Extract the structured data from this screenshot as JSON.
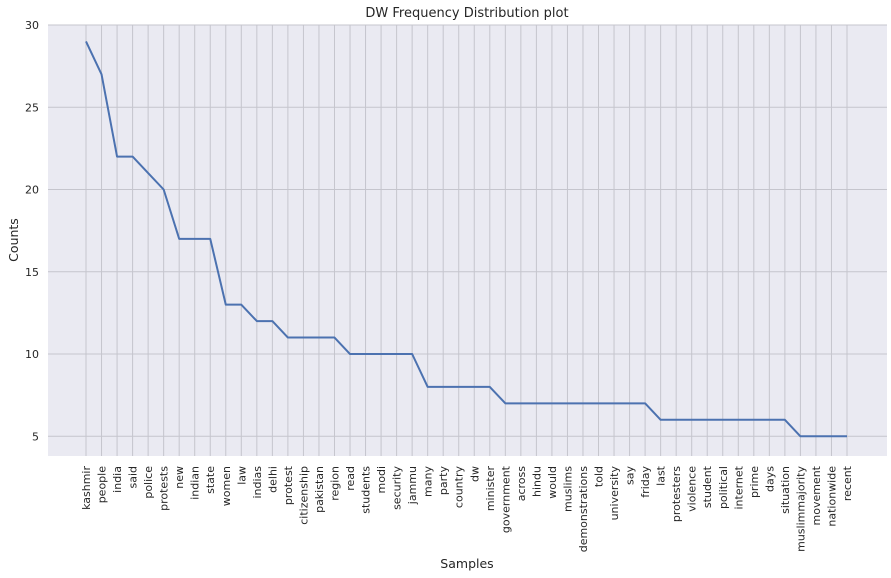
{
  "chart_data": {
    "type": "line",
    "title": "DW Frequency Distribution plot",
    "xlabel": "Samples",
    "ylabel": "Counts",
    "ylim": [
      3.8,
      30
    ],
    "yticks": [
      5,
      10,
      15,
      20,
      25,
      30
    ],
    "grid": true,
    "colors": {
      "line": "#4c72b0",
      "background": "#eaeaf2",
      "grid": "#c5c5cd"
    },
    "categories": [
      "kashmir",
      "people",
      "india",
      "said",
      "police",
      "protests",
      "new",
      "indian",
      "state",
      "women",
      "law",
      "indias",
      "delhi",
      "protest",
      "citizenship",
      "pakistan",
      "region",
      "read",
      "students",
      "modi",
      "security",
      "jammu",
      "many",
      "party",
      "country",
      "dw",
      "minister",
      "government",
      "across",
      "hindu",
      "would",
      "muslims",
      "demonstrations",
      "told",
      "university",
      "say",
      "friday",
      "last",
      "protesters",
      "violence",
      "student",
      "political",
      "internet",
      "prime",
      "days",
      "situation",
      "muslimmajority",
      "movement",
      "nationwide",
      "recent"
    ],
    "values": [
      29,
      27,
      22,
      22,
      21,
      20,
      17,
      17,
      17,
      13,
      13,
      12,
      12,
      11,
      11,
      11,
      11,
      10,
      10,
      10,
      10,
      10,
      8,
      8,
      8,
      8,
      8,
      7,
      7,
      7,
      7,
      7,
      7,
      7,
      7,
      7,
      7,
      6,
      6,
      6,
      6,
      6,
      6,
      6,
      6,
      6,
      5,
      5,
      5,
      5
    ]
  }
}
